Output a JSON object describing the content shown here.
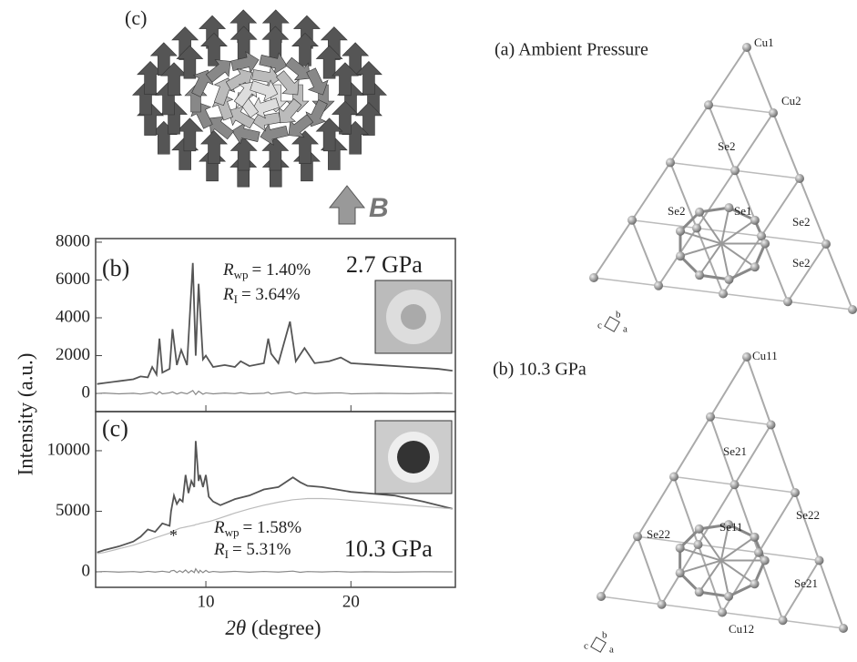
{
  "skyrmion_panel": {
    "label": "(c)",
    "field_label": "B"
  },
  "y_label": "Intensity (a.u.)",
  "x_label": {
    "symbol": "2θ",
    "text": "(degree)"
  },
  "chart_data": [
    {
      "type": "line",
      "panel_label": "(b)",
      "pressure": "2.7 GPa",
      "fit": [
        {
          "symbol": "R",
          "subscript": "wp",
          "text": "= 1.40%"
        },
        {
          "symbol": "R",
          "subscript": "I",
          "text": "= 3.64%"
        }
      ],
      "x": [
        2.5,
        3,
        4,
        5,
        5.5,
        6,
        6.3,
        6.6,
        6.8,
        7,
        7.5,
        7.7,
        8,
        8.3,
        8.7,
        9.1,
        9.3,
        9.5,
        9.8,
        10,
        10.5,
        11.3,
        12,
        12.4,
        13,
        14,
        14.3,
        14.5,
        15,
        15.8,
        16.2,
        16.8,
        17.5,
        18.5,
        19.3,
        20,
        22,
        24,
        26,
        27
      ],
      "series": [
        {
          "color": "#555555",
          "values": [
            500,
            550,
            650,
            750,
            900,
            850,
            1400,
            1000,
            2900,
            1100,
            1300,
            3400,
            1500,
            2300,
            1500,
            6900,
            2000,
            5800,
            1800,
            2000,
            1400,
            1500,
            1400,
            1700,
            1450,
            1600,
            2900,
            2100,
            1600,
            3800,
            1700,
            2400,
            1600,
            1700,
            1900,
            1600,
            1500,
            1400,
            1300,
            1200
          ]
        },
        {
          "color": "#888888",
          "values": [
            0,
            20,
            -20,
            10,
            -30,
            20,
            60,
            -40,
            90,
            -20,
            30,
            80,
            -30,
            50,
            -20,
            150,
            -60,
            120,
            -40,
            30,
            -20,
            20,
            -10,
            40,
            -20,
            10,
            60,
            -30,
            20,
            80,
            -30,
            40,
            -10,
            20,
            30,
            -20,
            10,
            -10,
            20,
            0
          ]
        }
      ],
      "xlim": [
        2.4,
        27.2
      ],
      "xticks": [
        10,
        20
      ],
      "ylim": [
        -960,
        8190
      ],
      "yticks": [
        0,
        2000,
        4000,
        6000,
        8000
      ]
    },
    {
      "type": "line",
      "panel_label": "(c)",
      "pressure": "10.3 GPa",
      "annotation": "*",
      "fit": [
        {
          "symbol": "R",
          "subscript": "wp",
          "text": "= 1.58%"
        },
        {
          "symbol": "R",
          "subscript": "I",
          "text": "= 5.31%"
        }
      ],
      "x": [
        2.5,
        3,
        4,
        5,
        5.5,
        6,
        6.5,
        7,
        7.5,
        7.6,
        7.8,
        8,
        8.2,
        8.4,
        8.6,
        8.8,
        9,
        9.2,
        9.3,
        9.5,
        9.6,
        9.8,
        10,
        10.2,
        10.5,
        11,
        12,
        13,
        14,
        15,
        16,
        16.5,
        17,
        18,
        19,
        20,
        21,
        23,
        25,
        27
      ],
      "series": [
        {
          "color": "#555555",
          "values": [
            1600,
            1800,
            2100,
            2500,
            2900,
            3500,
            3300,
            4000,
            3800,
            5000,
            6300,
            5600,
            6000,
            5800,
            8000,
            6500,
            7500,
            7000,
            10800,
            7500,
            8000,
            7000,
            8000,
            6200,
            5800,
            5500,
            6000,
            6300,
            6800,
            7000,
            7800,
            7400,
            7100,
            7000,
            6800,
            6600,
            6500,
            6300,
            5800,
            5200
          ]
        },
        {
          "color": "#bbbbbb",
          "values": [
            1500,
            1600,
            1900,
            2200,
            2400,
            2600,
            2800,
            3000,
            3200,
            3300,
            3400,
            3500,
            3600,
            3650,
            3700,
            3750,
            3800,
            3850,
            3900,
            3950,
            4000,
            4050,
            4100,
            4150,
            4250,
            4450,
            4850,
            5200,
            5500,
            5750,
            5950,
            6000,
            6050,
            6050,
            6000,
            5900,
            5800,
            5600,
            5400,
            5200
          ]
        },
        {
          "color": "#888888",
          "values": [
            0,
            30,
            -20,
            20,
            -30,
            40,
            -20,
            50,
            -40,
            80,
            120,
            -60,
            90,
            -50,
            150,
            -80,
            110,
            -60,
            250,
            -90,
            130,
            -70,
            120,
            -40,
            30,
            -20,
            40,
            -30,
            30,
            -20,
            60,
            -40,
            20,
            -10,
            30,
            -20,
            10,
            -20,
            10,
            0
          ]
        }
      ],
      "xlim": [
        2.4,
        27.2
      ],
      "xticks": [
        10,
        20
      ],
      "ylim": [
        -1280,
        13230
      ],
      "yticks": [
        0,
        5000,
        10000
      ]
    }
  ],
  "structures": [
    {
      "title": "(a) Ambient Pressure",
      "atoms": [
        "Cu1",
        "Cu2",
        "Se2",
        "Se2",
        "Se1",
        "Se2",
        "Se2"
      ],
      "axes": [
        "c",
        "b",
        "a"
      ]
    },
    {
      "title": "(b) 10.3 GPa",
      "atoms": [
        "Cu11",
        "Se21",
        "Se22",
        "Se11",
        "Se22",
        "Se21",
        "Cu12"
      ],
      "axes": [
        "c",
        "b",
        "a"
      ]
    }
  ]
}
